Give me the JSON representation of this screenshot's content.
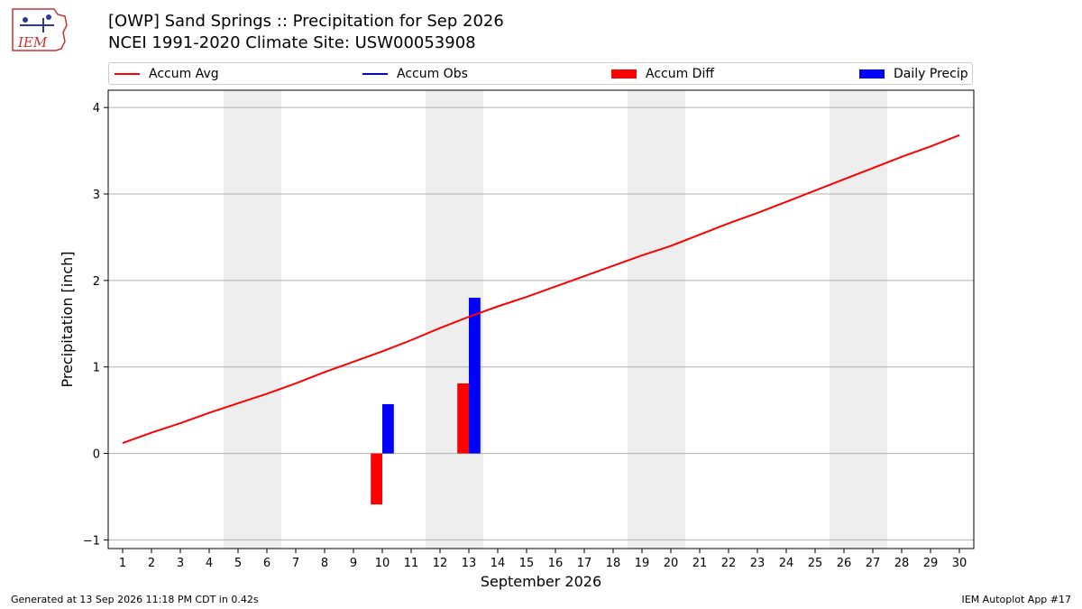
{
  "header": {
    "logo_text": "IEM",
    "title_line1": "[OWP] Sand Springs :: Precipitation for Sep 2026",
    "title_line2": "NCEI 1991-2020 Climate Site: USW00053908"
  },
  "legend": {
    "placement": "top",
    "items": [
      {
        "label": "Accum Avg",
        "kind": "line",
        "color": "#ff0000"
      },
      {
        "label": "Accum Obs",
        "kind": "line",
        "color": "#0000ff"
      },
      {
        "label": "Accum Diff",
        "kind": "box",
        "color": "#ff0000"
      },
      {
        "label": "Daily Precip",
        "kind": "box",
        "color": "#0000ff"
      }
    ]
  },
  "chart_data": {
    "type": "bar",
    "xlabel": "September 2026",
    "ylabel": "Precipitation [inch]",
    "ylim": [
      -1.1,
      4.2
    ],
    "xlim": [
      0.5,
      30.5
    ],
    "yticks": [
      -1,
      0,
      1,
      2,
      3,
      4
    ],
    "xticks": [
      1,
      2,
      3,
      4,
      5,
      6,
      7,
      8,
      9,
      10,
      11,
      12,
      13,
      14,
      15,
      16,
      17,
      18,
      19,
      20,
      21,
      22,
      23,
      24,
      25,
      26,
      27,
      28,
      29,
      30
    ],
    "grid": "horizontal",
    "weekend_shading": [
      [
        5,
        6
      ],
      [
        12,
        13
      ],
      [
        19,
        20
      ],
      [
        26,
        27
      ]
    ],
    "shading_color": "#eeeeee",
    "series": [
      {
        "name": "Accum Avg",
        "type": "line",
        "color": "#ff0000",
        "x": [
          1,
          2,
          3,
          4,
          5,
          6,
          7,
          8,
          9,
          10,
          11,
          12,
          13,
          14,
          15,
          16,
          17,
          18,
          19,
          20,
          21,
          22,
          23,
          24,
          25,
          26,
          27,
          28,
          29,
          30
        ],
        "values": [
          0.12,
          0.24,
          0.35,
          0.47,
          0.58,
          0.69,
          0.81,
          0.94,
          1.06,
          1.18,
          1.31,
          1.45,
          1.58,
          1.7,
          1.81,
          1.93,
          2.05,
          2.17,
          2.29,
          2.4,
          2.53,
          2.66,
          2.78,
          2.91,
          3.04,
          3.17,
          3.3,
          3.43,
          3.55,
          3.68
        ]
      },
      {
        "name": "Accum Diff",
        "type": "bar",
        "color": "#ff0000",
        "x": [
          10,
          13
        ],
        "values": [
          -0.59,
          0.81
        ]
      },
      {
        "name": "Daily Precip",
        "type": "bar",
        "color": "#0000ff",
        "x": [
          10,
          13
        ],
        "values": [
          0.57,
          1.8
        ]
      }
    ]
  },
  "footer": {
    "generated": "Generated at 13 Sep 2026 11:18 PM CDT in 0.42s",
    "app": "IEM Autoplot App #17"
  }
}
